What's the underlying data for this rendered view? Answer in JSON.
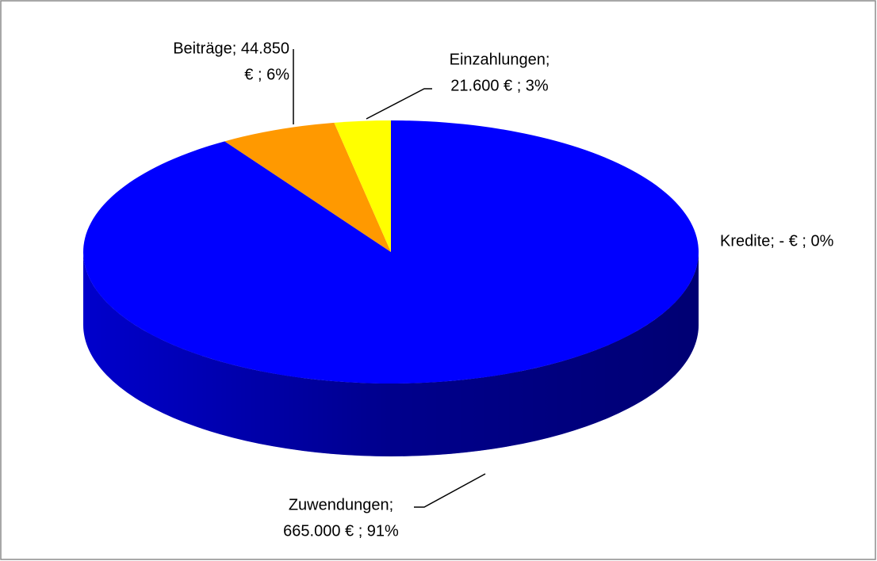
{
  "chart_data": {
    "type": "pie",
    "values": [
      665000,
      44850,
      21600,
      0
    ],
    "value_labels": [
      [
        "Zuwendungen;",
        "665.000 € ; 91%"
      ],
      [
        "Beiträge;  44.850",
        "€ ; 6%"
      ],
      [
        "Einzahlungen;",
        "21.600 € ; 3%"
      ],
      [
        "Kredite;  - € ; 0%"
      ]
    ],
    "colors": [
      "#0000ff",
      "#ff9900",
      "#ffff00",
      "#c0c0c0"
    ]
  }
}
